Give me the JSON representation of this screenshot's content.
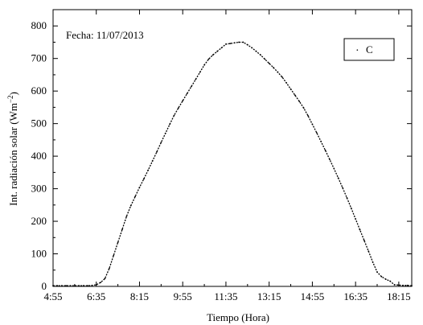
{
  "chart_data": {
    "type": "line",
    "title": "",
    "annotation": "Fecha: 11/07/2013",
    "xlabel": "Tiempo (Hora)",
    "ylabel": "Int. radiación solar (Wm",
    "ylabel_exp": "−2",
    "ylabel_close": ")",
    "xlim": [
      "4:55",
      "18:45"
    ],
    "ylim": [
      0,
      850
    ],
    "x_ticks": [
      "4:55",
      "6:35",
      "8:15",
      "9:55",
      "11:35",
      "13:15",
      "14:55",
      "16:35",
      "18:15"
    ],
    "y_ticks": [
      0,
      100,
      200,
      300,
      400,
      500,
      600,
      700,
      800
    ],
    "legend_position": "top-right",
    "series": [
      {
        "name": "C",
        "marker": "·",
        "x": [
          "4:55",
          "5:05",
          "5:15",
          "5:25",
          "5:35",
          "5:45",
          "5:55",
          "6:05",
          "6:15",
          "6:25",
          "6:35",
          "6:45",
          "6:55",
          "7:05",
          "7:15",
          "7:25",
          "7:35",
          "7:45",
          "7:55",
          "8:05",
          "8:15",
          "8:25",
          "8:35",
          "8:45",
          "8:55",
          "9:05",
          "9:15",
          "9:25",
          "9:35",
          "9:45",
          "9:55",
          "10:05",
          "10:15",
          "10:25",
          "10:35",
          "10:45",
          "10:55",
          "11:05",
          "11:15",
          "11:25",
          "11:35",
          "11:45",
          "11:55",
          "12:05",
          "12:15",
          "12:25",
          "12:35",
          "12:45",
          "12:55",
          "13:05",
          "13:15",
          "13:25",
          "13:35",
          "13:45",
          "13:55",
          "14:05",
          "14:15",
          "14:25",
          "14:35",
          "14:45",
          "14:55",
          "15:05",
          "15:15",
          "15:25",
          "15:35",
          "15:45",
          "15:55",
          "16:05",
          "16:15",
          "16:25",
          "16:35",
          "16:45",
          "16:55",
          "17:05",
          "17:15",
          "17:25",
          "17:35",
          "17:45",
          "17:55",
          "18:05",
          "18:15",
          "18:25",
          "18:35",
          "18:45"
        ],
        "y": [
          2,
          2,
          2,
          2,
          2,
          2,
          2,
          2,
          2,
          3,
          5,
          12,
          24,
          55,
          95,
          135,
          175,
          215,
          248,
          276,
          304,
          330,
          357,
          385,
          413,
          442,
          470,
          498,
          525,
          548,
          570,
          592,
          614,
          636,
          658,
          680,
          698,
          711,
          722,
          733,
          744,
          746,
          748,
          750,
          750,
          742,
          733,
          722,
          711,
          698,
          685,
          672,
          658,
          643,
          625,
          606,
          587,
          568,
          548,
          524,
          498,
          472,
          445,
          418,
          390,
          362,
          333,
          303,
          272,
          240,
          207,
          174,
          141,
          108,
          74,
          44,
          30,
          22,
          16,
          5,
          4,
          3,
          3,
          2
        ]
      }
    ]
  }
}
